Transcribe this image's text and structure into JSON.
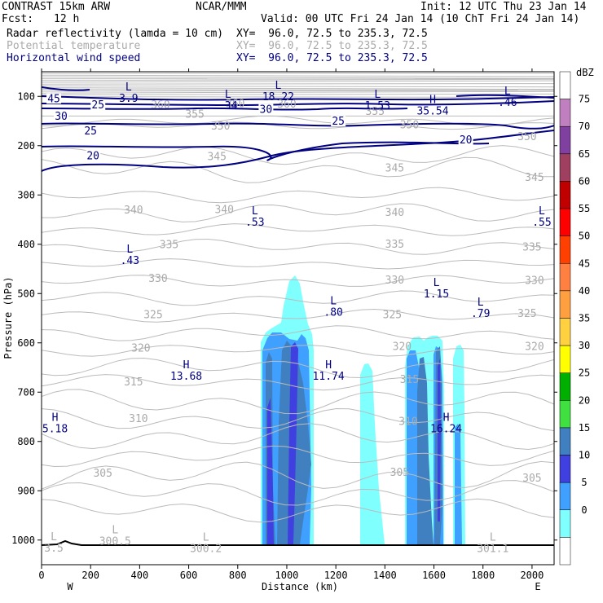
{
  "header": {
    "model": "CONTRAST 15km ARW",
    "center": "NCAR/MMM",
    "init": "Init: 12 UTC Thu 23 Jan 14",
    "fcst_label": "Fcst:",
    "fcst_value": "12 h",
    "valid": "Valid: 00 UTC Fri 24 Jan 14 (10 ChT Fri 24 Jan 14)",
    "fields": [
      {
        "name": "Radar reflectivity (lamda = 10 cm)",
        "xy": "XY=  96.0, 72.5 to 235.3, 72.5",
        "color": "#000000"
      },
      {
        "name": "Potential temperature",
        "xy": "XY=  96.0, 72.5 to 235.3, 72.5",
        "color": "#aaaaaa"
      },
      {
        "name": "Horizontal wind speed",
        "xy": "XY=  96.0, 72.5 to 235.3, 72.5",
        "color": "#000080"
      }
    ]
  },
  "chart_data": {
    "type": "cross-section",
    "xlabel": "Distance (km)",
    "ylabel": "Pressure (hPa)",
    "xlim": [
      0,
      2090
    ],
    "ylim": [
      1050,
      50
    ],
    "x_ticks": [
      0,
      200,
      400,
      600,
      800,
      1000,
      1200,
      1400,
      1600,
      1800,
      2000
    ],
    "y_ticks": [
      100,
      200,
      300,
      400,
      500,
      600,
      700,
      800,
      900,
      1000
    ],
    "x_end_labels": {
      "left": "W",
      "right": "E"
    },
    "legend": {
      "unit": "dBZ",
      "levels": [
        75,
        70,
        65,
        60,
        55,
        50,
        45,
        40,
        35,
        30,
        25,
        20,
        15,
        10,
        5,
        0
      ],
      "colors": [
        "#ffffff",
        "#c080c0",
        "#8040a0",
        "#a04060",
        "#c00000",
        "#ff0000",
        "#ff4000",
        "#ff8040",
        "#ffa040",
        "#ffd040",
        "#ffff00",
        "#00b000",
        "#40e040",
        "#4080c0",
        "#4040e0",
        "#40a0ff",
        "#80ffff",
        "#ffffff"
      ]
    },
    "theta_labels": [
      {
        "v": "360",
        "x": 485,
        "p": 118
      },
      {
        "v": "360",
        "x": 790,
        "p": 115
      },
      {
        "v": "360",
        "x": 1000,
        "p": 116
      },
      {
        "v": "355",
        "x": 625,
        "p": 137
      },
      {
        "v": "355",
        "x": 1360,
        "p": 131
      },
      {
        "v": "350",
        "x": 730,
        "p": 161
      },
      {
        "v": "350",
        "x": 1500,
        "p": 158
      },
      {
        "v": "350",
        "x": 1980,
        "p": 182
      },
      {
        "v": "345",
        "x": 715,
        "p": 223
      },
      {
        "v": "345",
        "x": 1440,
        "p": 246
      },
      {
        "v": "345",
        "x": 2010,
        "p": 265
      },
      {
        "v": "340",
        "x": 375,
        "p": 331
      },
      {
        "v": "340",
        "x": 745,
        "p": 330
      },
      {
        "v": "340",
        "x": 1440,
        "p": 336
      },
      {
        "v": "335",
        "x": 520,
        "p": 401
      },
      {
        "v": "335",
        "x": 1440,
        "p": 400
      },
      {
        "v": "335",
        "x": 2000,
        "p": 406
      },
      {
        "v": "330",
        "x": 475,
        "p": 470
      },
      {
        "v": "330",
        "x": 1440,
        "p": 473
      },
      {
        "v": "330",
        "x": 2010,
        "p": 474
      },
      {
        "v": "325",
        "x": 455,
        "p": 543
      },
      {
        "v": "325",
        "x": 1430,
        "p": 543
      },
      {
        "v": "325",
        "x": 1980,
        "p": 541
      },
      {
        "v": "320",
        "x": 405,
        "p": 611
      },
      {
        "v": "320",
        "x": 1470,
        "p": 608
      },
      {
        "v": "320",
        "x": 2010,
        "p": 608
      },
      {
        "v": "315",
        "x": 375,
        "p": 680
      },
      {
        "v": "315",
        "x": 1500,
        "p": 675
      },
      {
        "v": "310",
        "x": 395,
        "p": 754
      },
      {
        "v": "310",
        "x": 1495,
        "p": 760
      },
      {
        "v": "305",
        "x": 250,
        "p": 865
      },
      {
        "v": "305",
        "x": 1460,
        "p": 863
      },
      {
        "v": "305",
        "x": 2000,
        "p": 875
      }
    ],
    "wind_labels": [
      {
        "v": "45",
        "x": 50,
        "p": 105
      },
      {
        "v": "25",
        "x": 230,
        "p": 118
      },
      {
        "v": "30",
        "x": 80,
        "p": 141
      },
      {
        "v": "30",
        "x": 915,
        "p": 127
      },
      {
        "v": "25",
        "x": 200,
        "p": 171
      },
      {
        "v": "20",
        "x": 210,
        "p": 221
      },
      {
        "v": "25",
        "x": 1210,
        "p": 151
      },
      {
        "v": "20",
        "x": 1730,
        "p": 189
      }
    ],
    "extrema": [
      {
        "type": "L",
        "value": "3.9",
        "x": 355,
        "p": 88
      },
      {
        "type": "L",
        "value": ".34",
        "x": 760,
        "p": 103
      },
      {
        "type": "L",
        "value": "18.22",
        "x": 965,
        "p": 85
      },
      {
        "type": "L",
        "value": "1.53",
        "x": 1370,
        "p": 103
      },
      {
        "type": "H",
        "value": "35.54",
        "x": 1595,
        "p": 114
      },
      {
        "type": "L",
        "value": ".46",
        "x": 1900,
        "p": 96
      },
      {
        "type": "L",
        "value": ".53",
        "x": 870,
        "p": 339
      },
      {
        "type": "L",
        "value": ".55",
        "x": 2040,
        "p": 339
      },
      {
        "type": "L",
        "value": ".43",
        "x": 360,
        "p": 417
      },
      {
        "type": "L",
        "value": "1.15",
        "x": 1610,
        "p": 485
      },
      {
        "type": "L",
        "value": ".80",
        "x": 1190,
        "p": 522
      },
      {
        "type": "L",
        "value": ".79",
        "x": 1790,
        "p": 524
      },
      {
        "type": "H",
        "value": "13.68",
        "x": 590,
        "p": 652
      },
      {
        "type": "H",
        "value": "11.74",
        "x": 1170,
        "p": 652
      },
      {
        "type": "H",
        "value": "5.18",
        "x": 55,
        "p": 758
      },
      {
        "type": "H",
        "value": "16.24",
        "x": 1650,
        "p": 758
      },
      {
        "type": "L",
        "value": "3.5",
        "x": 50,
        "p": 1000
      },
      {
        "type": "L",
        "value": "300.5",
        "x": 300,
        "p": 986
      },
      {
        "type": "L",
        "value": "300.2",
        "x": 670,
        "p": 1001
      },
      {
        "type": "L",
        "value": "301.1",
        "x": 1840,
        "p": 1001
      }
    ]
  }
}
